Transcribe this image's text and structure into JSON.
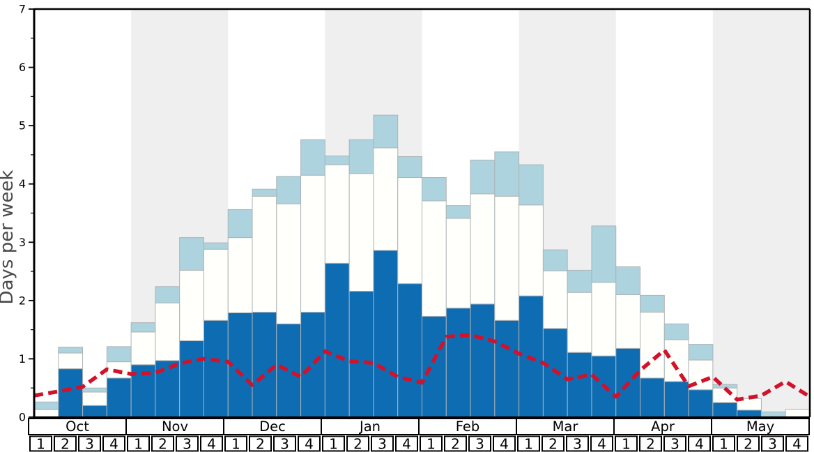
{
  "colors": {
    "dark_blue": "#0e6cb3",
    "light_blue": "#acd3de",
    "bar_white": "#fffffb",
    "bar_border": "#aeb3b6",
    "band_gray": "#efefef",
    "axis_black": "#000000",
    "line_red": "#d2112b",
    "ylabel_gray": "#4a4a4a",
    "tick_text": "#000000",
    "box_fill": "#ffffff"
  },
  "chart_data": {
    "type": "bar",
    "title": "",
    "xlabel": "",
    "ylabel": "Days per week",
    "ylim": [
      0,
      7
    ],
    "grid": false,
    "legend": "none",
    "y_major_ticks": [
      "0",
      "1",
      "2",
      "3",
      "4",
      "5",
      "6",
      "7"
    ],
    "y_minor_tick_step": 0.5,
    "week_labels": [
      "1",
      "2",
      "3",
      "4"
    ],
    "months": [
      {
        "label": "Oct",
        "shaded": false
      },
      {
        "label": "Nov",
        "shaded": true
      },
      {
        "label": "Dec",
        "shaded": false
      },
      {
        "label": "Jan",
        "shaded": true
      },
      {
        "label": "Feb",
        "shaded": false
      },
      {
        "label": "Mar",
        "shaded": true
      },
      {
        "label": "Apr",
        "shaded": false
      },
      {
        "label": "May",
        "shaded": true
      }
    ],
    "stacked_bars": {
      "note": "cumulative segment tops (days per week) for 32 weekly bars, Oct wk1 .. May wk4; layers stack dark-blue, then white, then light-blue",
      "dark_blue_top": [
        0,
        0.83,
        0.2,
        0.67,
        0.9,
        0.97,
        1.31,
        1.66,
        1.79,
        1.8,
        1.6,
        1.8,
        2.64,
        2.16,
        2.86,
        2.29,
        1.73,
        1.87,
        1.94,
        1.66,
        2.08,
        1.52,
        1.11,
        1.05,
        1.18,
        0.67,
        0.61,
        0.47,
        0.25,
        0.12,
        0,
        0
      ],
      "white_top": [
        0.13,
        1.1,
        0.43,
        0.95,
        1.46,
        1.96,
        2.52,
        2.88,
        3.08,
        3.79,
        3.66,
        4.15,
        4.33,
        4.18,
        4.62,
        4.11,
        3.71,
        3.41,
        3.83,
        3.79,
        3.64,
        2.51,
        2.14,
        2.31,
        2.1,
        1.8,
        1.33,
        0.98,
        0.5,
        0.32,
        0,
        0.13
      ],
      "light_blue_top": [
        0.26,
        1.2,
        0.5,
        1.21,
        1.62,
        2.24,
        3.08,
        2.99,
        3.56,
        3.91,
        4.13,
        4.76,
        4.48,
        4.76,
        5.18,
        4.47,
        4.11,
        3.63,
        4.41,
        4.55,
        4.33,
        2.87,
        2.52,
        3.28,
        2.58,
        2.09,
        1.6,
        1.25,
        0.56,
        0.32,
        0.09,
        0.13
      ]
    },
    "dashed_line": {
      "note": "red dashed overlay line; 33 vertices at weekly boundaries from start of Oct to end of May",
      "values": [
        0.37,
        0.44,
        0.52,
        0.82,
        0.74,
        0.76,
        0.92,
        1.0,
        0.95,
        0.55,
        0.9,
        0.69,
        1.13,
        0.96,
        0.93,
        0.69,
        0.59,
        1.38,
        1.41,
        1.3,
        1.09,
        0.93,
        0.65,
        0.73,
        0.35,
        0.8,
        1.15,
        0.53,
        0.69,
        0.3,
        0.37,
        0.61,
        0.35
      ]
    }
  }
}
